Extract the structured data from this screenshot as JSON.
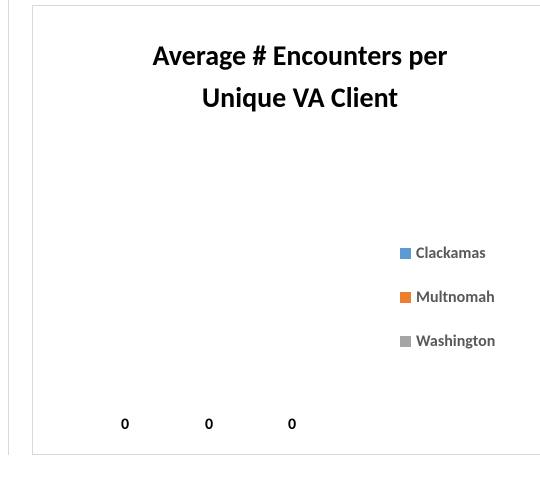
{
  "chart_data": {
    "type": "bar",
    "title": "Average # Encounters per Unique VA Client",
    "categories": [
      null
    ],
    "series": [
      {
        "name": "Clackamas",
        "color": "#5b9bd5",
        "values": [
          0
        ]
      },
      {
        "name": "Multnomah",
        "color": "#ed7d31",
        "values": [
          0
        ]
      },
      {
        "name": "Washington",
        "color": "#a5a5a5",
        "values": [
          0
        ]
      }
    ],
    "legend": "right"
  }
}
